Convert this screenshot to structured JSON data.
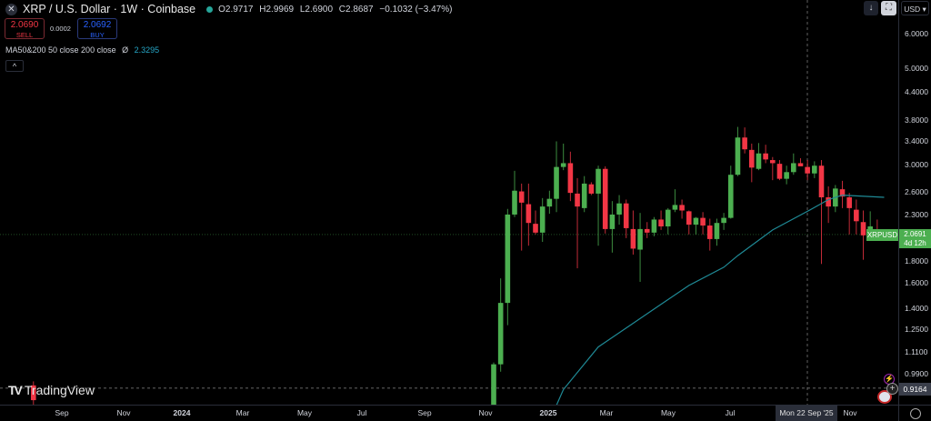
{
  "header": {
    "symbol": "XRP / U.S. Dollar · 1W · Coinbase",
    "open": "O2.9717",
    "high": "H2.9969",
    "low": "L2.6900",
    "close": "C2.8687",
    "change": "−0.1032 (−3.47%)",
    "status_color": "#26a69a"
  },
  "trade": {
    "sell_price": "2.0690",
    "sell_label": "SELL",
    "spread": "0.0002",
    "buy_price": "2.0692",
    "buy_label": "BUY"
  },
  "indicator": {
    "name": "MA50&200 50 close 200 close",
    "symbol": "Ø",
    "value": "2.3295",
    "color": "#26a6c6"
  },
  "toolbar": {
    "currency": "USD ▾",
    "down_arrow": "↓"
  },
  "price_axis": {
    "scale": "log",
    "labels": [
      "6.0000",
      "5.0000",
      "4.4000",
      "3.8000",
      "3.4000",
      "3.0000",
      "2.6000",
      "2.3000",
      "1.8000",
      "1.6000",
      "1.4000",
      "1.2500",
      "1.1100",
      "0.9900"
    ]
  },
  "last_price": {
    "symbol": "XRPUSD",
    "price": "2.0691",
    "countdown": "4d 12h",
    "value": 2.0691,
    "color": "#4caf50"
  },
  "crosshair": {
    "price": "0.9164",
    "price_value": 0.9164,
    "date": "Mon 22 Sep '25"
  },
  "time_axis": {
    "labels": [
      "Sep",
      "Nov",
      "2024",
      "Mar",
      "May",
      "Jul",
      "Sep",
      "Nov",
      "2025",
      "Mar",
      "May",
      "Jul",
      "Nov"
    ]
  },
  "brand": "TradingView",
  "chart_data": {
    "type": "candlestick",
    "title": "XRP / U.S. Dollar · 1W · Coinbase",
    "y_scale": "log",
    "ylim": [
      0.77,
      6.2
    ],
    "colors": {
      "up": "#4caf50",
      "down": "#f23645",
      "ma": "#1f8a96"
    },
    "candles_fields": [
      "date",
      "open",
      "high",
      "low",
      "close"
    ],
    "candles": [
      [
        "2023-07-31",
        0.93,
        0.95,
        0.84,
        0.86
      ],
      [
        "2024-11-04",
        0.55,
        1.05,
        0.55,
        1.04
      ],
      [
        "2024-11-11",
        1.04,
        1.64,
        1.0,
        1.44
      ],
      [
        "2024-11-18",
        1.44,
        2.37,
        1.28,
        2.3
      ],
      [
        "2024-11-25",
        2.3,
        2.9,
        2.27,
        2.61
      ],
      [
        "2024-12-02",
        2.6,
        2.71,
        1.9,
        2.45
      ],
      [
        "2024-12-09",
        2.43,
        2.71,
        1.95,
        2.2
      ],
      [
        "2024-12-16",
        2.19,
        2.35,
        2.07,
        2.09
      ],
      [
        "2024-12-23",
        2.09,
        2.51,
        1.99,
        2.4
      ],
      [
        "2024-12-30",
        2.4,
        2.61,
        2.31,
        2.5
      ],
      [
        "2025-01-06",
        2.5,
        3.39,
        2.33,
        2.96
      ],
      [
        "2025-01-13",
        2.96,
        3.35,
        2.91,
        3.02
      ],
      [
        "2025-01-20",
        3.02,
        3.21,
        2.47,
        2.58
      ],
      [
        "2025-01-27",
        2.57,
        2.79,
        1.73,
        2.4
      ],
      [
        "2025-02-03",
        2.38,
        2.82,
        2.33,
        2.71
      ],
      [
        "2025-02-10",
        2.7,
        2.73,
        2.55,
        2.57
      ],
      [
        "2025-02-17",
        2.57,
        2.98,
        1.95,
        2.93
      ],
      [
        "2025-02-24",
        2.93,
        2.97,
        2.08,
        2.13
      ],
      [
        "2025-03-03",
        2.13,
        2.47,
        1.88,
        2.3
      ],
      [
        "2025-03-10",
        2.3,
        2.55,
        2.18,
        2.44
      ],
      [
        "2025-03-17",
        2.44,
        2.49,
        2.03,
        2.14
      ],
      [
        "2025-03-24",
        2.13,
        2.35,
        1.86,
        1.92
      ],
      [
        "2025-03-31",
        1.91,
        2.32,
        1.61,
        2.13
      ],
      [
        "2025-04-07",
        2.13,
        2.21,
        2.03,
        2.09
      ],
      [
        "2025-04-14",
        2.09,
        2.27,
        2.05,
        2.24
      ],
      [
        "2025-04-21",
        2.24,
        2.35,
        2.12,
        2.16
      ],
      [
        "2025-04-28",
        2.16,
        2.38,
        2.07,
        2.36
      ],
      [
        "2025-05-05",
        2.36,
        2.63,
        2.33,
        2.42
      ],
      [
        "2025-05-12",
        2.42,
        2.49,
        2.25,
        2.35
      ],
      [
        "2025-05-19",
        2.34,
        2.35,
        2.07,
        2.18
      ],
      [
        "2025-05-26",
        2.18,
        2.27,
        2.07,
        2.26
      ],
      [
        "2025-06-02",
        2.26,
        2.33,
        2.07,
        2.17
      ],
      [
        "2025-06-09",
        2.17,
        2.25,
        1.9,
        2.02
      ],
      [
        "2025-06-16",
        2.02,
        2.25,
        1.95,
        2.2
      ],
      [
        "2025-06-23",
        2.2,
        2.32,
        2.12,
        2.26
      ],
      [
        "2025-06-30",
        2.26,
        2.98,
        2.25,
        2.84
      ],
      [
        "2025-07-07",
        2.84,
        3.66,
        2.82,
        3.46
      ],
      [
        "2025-07-14",
        3.46,
        3.65,
        3.18,
        3.25
      ],
      [
        "2025-07-21",
        3.24,
        3.35,
        2.73,
        2.95
      ],
      [
        "2025-07-28",
        2.93,
        3.36,
        2.91,
        3.18
      ],
      [
        "2025-08-04",
        3.18,
        3.33,
        3.02,
        3.08
      ],
      [
        "2025-08-11",
        3.07,
        3.12,
        2.76,
        3.02
      ],
      [
        "2025-08-18",
        3.01,
        3.07,
        2.76,
        2.78
      ],
      [
        "2025-08-25",
        2.78,
        2.98,
        2.7,
        2.88
      ],
      [
        "2025-09-01",
        2.88,
        3.18,
        2.84,
        3.02
      ],
      [
        "2025-09-08",
        3.02,
        3.1,
        2.98,
        2.97
      ],
      [
        "2025-09-15",
        2.96,
        3.07,
        2.76,
        2.86
      ],
      [
        "2025-09-22",
        2.86,
        3.05,
        2.79,
        2.98
      ],
      [
        "2025-09-29",
        2.98,
        3.07,
        1.77,
        2.52
      ],
      [
        "2025-10-06",
        2.52,
        2.67,
        2.2,
        2.4
      ],
      [
        "2025-10-13",
        2.4,
        2.69,
        2.33,
        2.64
      ],
      [
        "2025-10-20",
        2.63,
        2.75,
        2.38,
        2.53
      ],
      [
        "2025-10-27",
        2.52,
        2.58,
        2.07,
        2.38
      ],
      [
        "2025-11-03",
        2.36,
        2.49,
        2.07,
        2.22
      ],
      [
        "2025-11-10",
        2.21,
        2.35,
        1.81,
        2.06
      ],
      [
        "2025-11-17",
        2.06,
        2.34,
        2.0,
        2.16
      ],
      [
        "2025-11-24",
        2.11,
        2.24,
        2.03,
        2.07
      ]
    ],
    "ma_series": [
      [
        "2024-12-30",
        0.77
      ],
      [
        "2025-01-13",
        0.91
      ],
      [
        "2025-02-17",
        1.14
      ],
      [
        "2025-03-17",
        1.26
      ],
      [
        "2025-04-21",
        1.43
      ],
      [
        "2025-05-19",
        1.58
      ],
      [
        "2025-06-23",
        1.74
      ],
      [
        "2025-07-07",
        1.85
      ],
      [
        "2025-08-11",
        2.12
      ],
      [
        "2025-09-15",
        2.34
      ],
      [
        "2025-10-06",
        2.49
      ],
      [
        "2025-10-20",
        2.55
      ],
      [
        "2025-12-01",
        2.52
      ]
    ]
  }
}
